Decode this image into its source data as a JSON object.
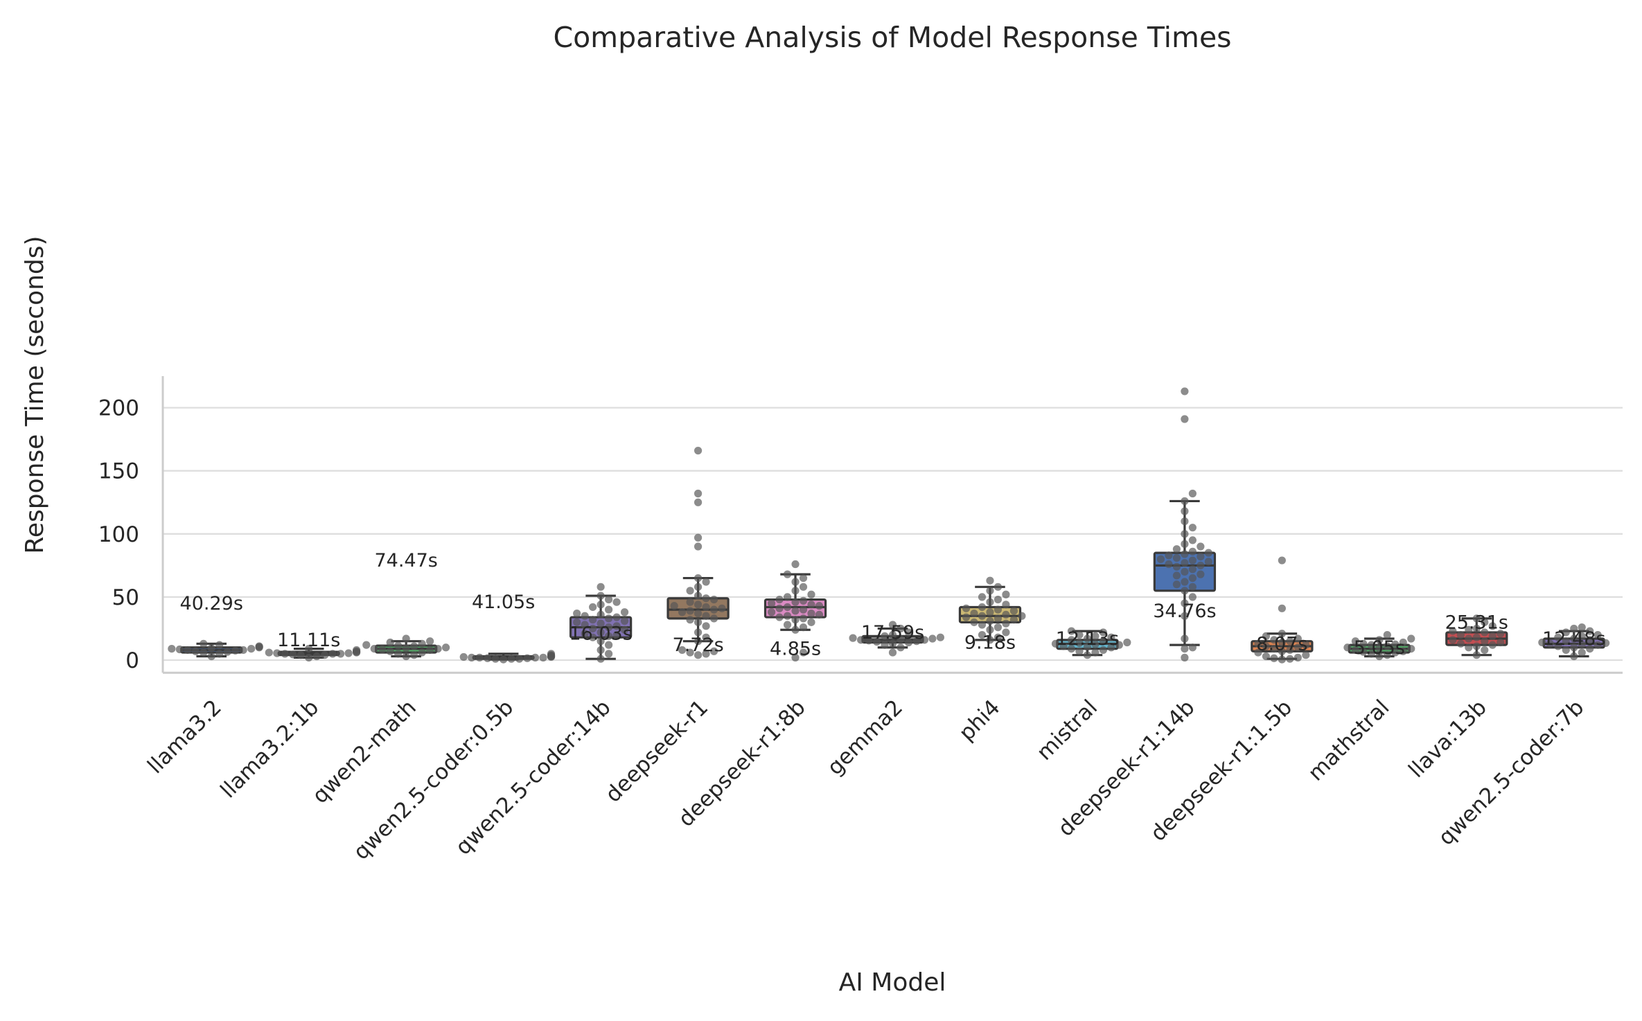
{
  "chart_data": {
    "type": "box",
    "title": "Comparative Analysis of Model Response Times",
    "xlabel": "AI Model",
    "ylabel": "Response Time (seconds)",
    "ylim": [
      -10,
      225
    ],
    "yticks": [
      0,
      50,
      100,
      150,
      200
    ],
    "grid": "horizontal",
    "categories": [
      "llama3.2",
      "llama3.2:1b",
      "qwen2-math",
      "qwen2.5-coder:0.5b",
      "qwen2.5-coder:14b",
      "deepseek-r1",
      "deepseek-r1:8b",
      "gemma2",
      "phi4",
      "mistral",
      "deepseek-r1:14b",
      "deepseek-r1:1.5b",
      "mathstral",
      "llava:13b",
      "qwen2.5-coder:7b"
    ],
    "colors": [
      "#4c72b0",
      "#6c8ebf",
      "#55a868",
      "#8c8c8c",
      "#8172b3",
      "#937860",
      "#da8bc3",
      "#8c8c8c",
      "#ccb974",
      "#64b5cd",
      "#4c72b0",
      "#dd8452",
      "#55a868",
      "#c44e52",
      "#8172b3"
    ],
    "boxes": [
      {
        "min": 3,
        "q1": 6,
        "median": 8,
        "q3": 10,
        "max": 13
      },
      {
        "min": 2,
        "q1": 4,
        "median": 5,
        "q3": 6.5,
        "max": 9
      },
      {
        "min": 3,
        "q1": 6,
        "median": 9,
        "q3": 11.5,
        "max": 15
      },
      {
        "min": 0.5,
        "q1": 1,
        "median": 2,
        "q3": 3,
        "max": 5
      },
      {
        "min": 1,
        "q1": 18,
        "median": 26,
        "q3": 34,
        "max": 51
      },
      {
        "min": 15,
        "q1": 33,
        "median": 40,
        "q3": 49,
        "max": 65
      },
      {
        "min": 24,
        "q1": 34,
        "median": 42,
        "q3": 48,
        "max": 68
      },
      {
        "min": 10,
        "q1": 14,
        "median": 16,
        "q3": 19,
        "max": 25
      },
      {
        "min": 16,
        "q1": 30,
        "median": 35,
        "q3": 42,
        "max": 58
      },
      {
        "min": 4,
        "q1": 9,
        "median": 13,
        "q3": 16,
        "max": 23
      },
      {
        "min": 12,
        "q1": 55,
        "median": 75,
        "q3": 85,
        "max": 126
      },
      {
        "min": 1,
        "q1": 7,
        "median": 11,
        "q3": 15,
        "max": 21
      },
      {
        "min": 3,
        "q1": 6,
        "median": 9,
        "q3": 12,
        "max": 17
      },
      {
        "min": 4,
        "q1": 12,
        "median": 17,
        "q3": 22,
        "max": 33
      },
      {
        "min": 3,
        "q1": 10,
        "median": 13,
        "q3": 17,
        "max": 23
      }
    ],
    "points": [
      [
        3,
        5,
        6,
        6.5,
        7,
        7.5,
        8,
        8,
        8.5,
        9,
        9,
        9.5,
        10,
        10.5,
        11,
        12,
        13
      ],
      [
        2,
        3,
        4,
        4,
        4.5,
        5,
        5,
        5,
        5.5,
        5.5,
        6,
        6,
        6.5,
        7,
        8,
        9
      ],
      [
        3,
        4,
        5,
        6,
        7,
        8,
        8.5,
        9,
        9,
        9.5,
        10,
        11,
        11.5,
        12,
        13,
        14,
        15,
        17
      ],
      [
        0.5,
        1,
        1,
        1,
        1.5,
        1.5,
        2,
        2,
        2,
        2,
        2.5,
        2.5,
        3,
        3,
        3.5,
        4,
        5
      ],
      [
        1,
        5,
        8,
        12,
        15,
        18,
        19,
        20,
        21,
        22,
        24,
        25,
        26,
        27,
        28,
        29,
        30,
        31,
        32,
        33,
        34,
        35,
        36,
        37,
        38,
        40,
        42,
        44,
        46,
        48,
        51,
        58
      ],
      [
        4,
        5,
        6,
        7,
        8,
        15,
        18,
        22,
        27,
        30,
        32,
        33,
        35,
        37,
        38,
        39,
        40,
        41,
        42,
        43,
        44,
        46,
        48,
        49,
        51,
        55,
        58,
        62,
        65,
        90,
        97,
        125,
        132,
        166
      ],
      [
        2,
        6,
        24,
        26,
        28,
        30,
        32,
        33,
        34,
        35,
        36,
        37,
        38,
        39,
        40,
        41,
        42,
        43,
        44,
        45,
        46,
        47,
        48,
        50,
        52,
        55,
        58,
        62,
        65,
        68,
        76
      ],
      [
        6,
        10,
        12,
        13,
        14,
        14.5,
        15,
        15.5,
        16,
        16,
        16.5,
        17,
        17.5,
        18,
        19,
        20,
        22,
        25,
        28
      ],
      [
        16,
        18,
        20,
        22,
        24,
        26,
        28,
        29,
        30,
        31,
        32,
        33,
        34,
        35,
        35,
        36,
        37,
        38,
        39,
        40,
        41,
        42,
        44,
        46,
        48,
        50,
        52,
        55,
        58,
        63
      ],
      [
        4,
        6,
        7,
        8,
        9,
        10,
        10.5,
        11,
        12,
        12.5,
        13,
        13.5,
        14,
        15,
        16,
        17,
        18,
        19,
        20,
        22,
        23
      ],
      [
        2,
        9,
        10,
        17,
        35,
        45,
        50,
        55,
        58,
        60,
        62,
        65,
        67,
        68,
        70,
        72,
        74,
        75,
        76,
        77,
        78,
        79,
        80,
        81,
        82,
        83,
        84,
        85,
        86,
        88,
        90,
        92,
        95,
        100,
        105,
        110,
        118,
        126,
        132,
        191,
        213
      ],
      [
        0.5,
        1,
        1.5,
        2,
        3,
        4,
        6,
        7,
        8,
        9,
        10,
        11,
        12,
        13,
        14,
        15,
        16,
        17,
        19,
        21,
        41,
        79
      ],
      [
        3,
        4,
        5,
        6,
        6.5,
        7,
        8,
        9,
        9.5,
        10,
        11,
        12,
        12.5,
        13,
        14,
        15,
        16,
        17,
        20
      ],
      [
        4,
        8,
        10,
        11,
        12,
        13,
        14,
        15,
        16,
        17,
        18,
        19,
        20,
        21,
        22,
        23,
        24,
        25,
        27,
        30,
        33
      ],
      [
        3,
        6,
        8,
        9,
        10,
        11,
        12,
        12.5,
        13,
        13.5,
        14,
        15,
        16,
        17,
        18,
        19,
        20,
        22,
        23,
        25,
        26
      ]
    ],
    "annotations": [
      {
        "text": "40.29s",
        "category": "llama3.2",
        "y": 45
      },
      {
        "text": "11.11s",
        "category": "llama3.2:1b",
        "y": 16
      },
      {
        "text": "74.47s",
        "category": "qwen2-math",
        "y": 79
      },
      {
        "text": "41.05s",
        "category": "qwen2.5-coder:0.5b",
        "y": 46
      },
      {
        "text": "16.03s",
        "category": "qwen2.5-coder:14b",
        "y": 21
      },
      {
        "text": "7.72s",
        "category": "deepseek-r1",
        "y": 12
      },
      {
        "text": "4.85s",
        "category": "deepseek-r1:8b",
        "y": 9
      },
      {
        "text": "17.59s",
        "category": "gemma2",
        "y": 22
      },
      {
        "text": "9.18s",
        "category": "phi4",
        "y": 14
      },
      {
        "text": "12.13s",
        "category": "mistral",
        "y": 17
      },
      {
        "text": "34.76s",
        "category": "deepseek-r1:14b",
        "y": 39
      },
      {
        "text": "8.07s",
        "category": "deepseek-r1:1.5b",
        "y": 13
      },
      {
        "text": "5.05s",
        "category": "mathstral",
        "y": 10
      },
      {
        "text": "25.31s",
        "category": "llava:13b",
        "y": 30
      },
      {
        "text": "12.48s",
        "category": "qwen2.5-coder:7b",
        "y": 17
      }
    ]
  }
}
